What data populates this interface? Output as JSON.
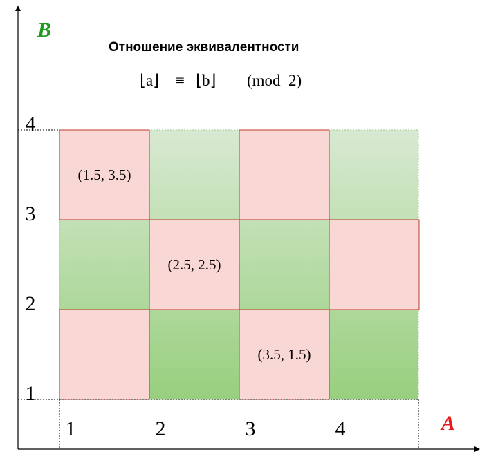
{
  "title": "Отношение эквивалентности",
  "formula": {
    "lhs": "⌊a⌋",
    "op": "≡",
    "rhs": "⌊b⌋",
    "modulus": "(mod  2)"
  },
  "axes": {
    "x_name": "A",
    "y_name": "B",
    "x_ticks": [
      "1",
      "2",
      "3",
      "4"
    ],
    "y_ticks": [
      "1",
      "2",
      "3",
      "4"
    ]
  },
  "grid": {
    "columns": 4,
    "rows": 3,
    "cells": [
      {
        "col": 0,
        "row": 0,
        "class": "related",
        "label": ""
      },
      {
        "col": 1,
        "row": 0,
        "class": "unrelated",
        "label": ""
      },
      {
        "col": 2,
        "row": 0,
        "class": "related",
        "label": "(3.5, 1.5)"
      },
      {
        "col": 3,
        "row": 0,
        "class": "unrelated",
        "label": ""
      },
      {
        "col": 0,
        "row": 1,
        "class": "unrelated",
        "label": ""
      },
      {
        "col": 1,
        "row": 1,
        "class": "related",
        "label": "(2.5, 2.5)"
      },
      {
        "col": 2,
        "row": 1,
        "class": "unrelated",
        "label": ""
      },
      {
        "col": 3,
        "row": 1,
        "class": "related",
        "label": ""
      },
      {
        "col": 0,
        "row": 2,
        "class": "related",
        "label": "(1.5, 3.5)"
      },
      {
        "col": 1,
        "row": 2,
        "class": "unrelated",
        "label": ""
      },
      {
        "col": 2,
        "row": 2,
        "class": "related",
        "label": ""
      },
      {
        "col": 3,
        "row": 2,
        "class": "unrelated",
        "label": ""
      }
    ]
  },
  "colors": {
    "related_fill": "#f8d7d4",
    "related_border": "#c0392b",
    "green_light": "#d8e9d2",
    "green_dark": "#98cf7e",
    "x_name": "#e8191c",
    "y_name": "#1e9a1e",
    "axis": "#000000"
  }
}
